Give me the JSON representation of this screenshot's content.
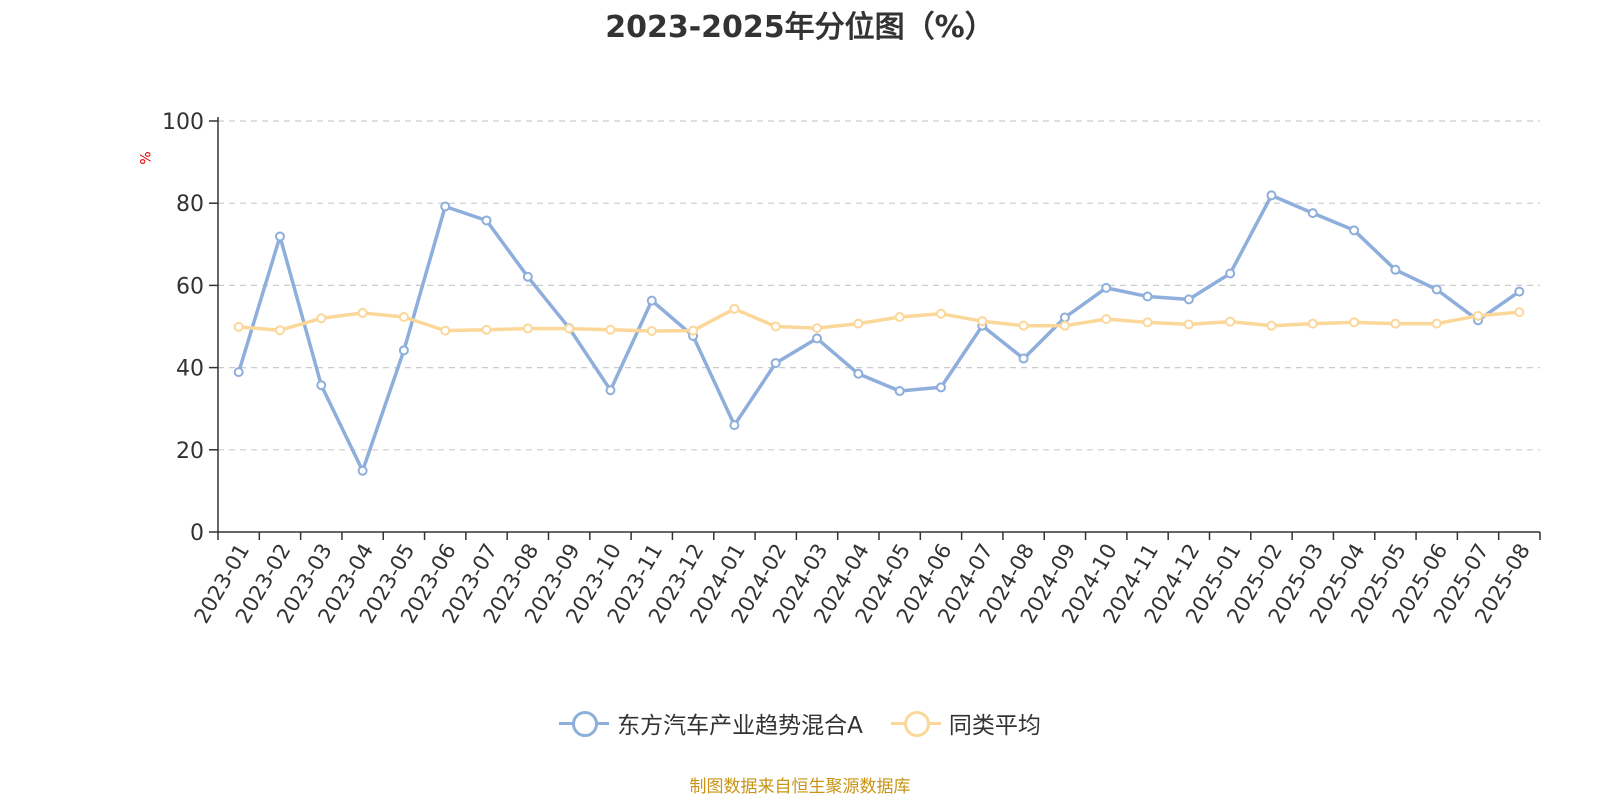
{
  "title": "2023-2025年分位图（%）",
  "source": "制图数据来自恒生聚源数据库",
  "chart_data": {
    "type": "line",
    "title": "2023-2025年分位图（%）",
    "xlabel": "",
    "ylabel": "%",
    "ylim": [
      0,
      100
    ],
    "yticks": [
      0,
      20,
      40,
      60,
      80,
      100
    ],
    "grid": true,
    "legend_position": "bottom",
    "categories": [
      "2023-01",
      "2023-02",
      "2023-03",
      "2023-04",
      "2023-05",
      "2023-06",
      "2023-07",
      "2023-08",
      "2023-09",
      "2023-10",
      "2023-11",
      "2023-12",
      "2024-01",
      "2024-02",
      "2024-03",
      "2024-04",
      "2024-05",
      "2024-06",
      "2024-07",
      "2024-08",
      "2024-09",
      "2024-10",
      "2024-11",
      "2024-12",
      "2025-01",
      "2025-02",
      "2025-03",
      "2025-04",
      "2025-05",
      "2025-06",
      "2025-07",
      "2025-08"
    ],
    "series": [
      {
        "name": "东方汽车产业趋势混合A",
        "color": "#8eaedb",
        "values": [
          38.9,
          71.9,
          35.7,
          14.9,
          44.2,
          79.2,
          75.8,
          62.1,
          49.6,
          34.5,
          56.3,
          47.7,
          26.0,
          41.1,
          47.1,
          38.5,
          34.3,
          35.2,
          50.2,
          42.2,
          52.2,
          59.4,
          57.3,
          56.6,
          62.9,
          81.9,
          77.6,
          73.4,
          63.8,
          59.0,
          51.5,
          58.5
        ]
      },
      {
        "name": "同类平均",
        "color": "#fbd89a",
        "values": [
          49.9,
          49.1,
          52.0,
          53.3,
          52.3,
          49.0,
          49.2,
          49.5,
          49.5,
          49.2,
          48.9,
          49.0,
          54.3,
          50.0,
          49.6,
          50.7,
          52.3,
          53.1,
          51.3,
          50.2,
          50.2,
          51.8,
          51.0,
          50.5,
          51.2,
          50.2,
          50.7,
          51.0,
          50.7,
          50.7,
          52.6,
          53.5
        ]
      }
    ]
  }
}
